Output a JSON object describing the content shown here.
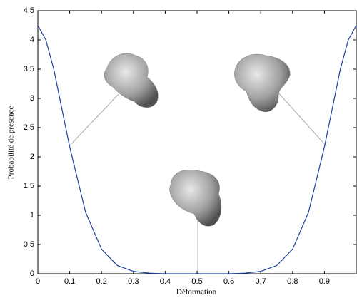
{
  "chart_data": {
    "type": "line",
    "xlabel": "Déformation",
    "ylabel": "Probabilité de presence",
    "x": [
      0,
      0.025,
      0.05,
      0.1,
      0.15,
      0.2,
      0.25,
      0.3,
      0.35,
      0.4,
      0.45,
      0.5,
      0.55,
      0.6,
      0.65,
      0.7,
      0.75,
      0.8,
      0.85,
      0.9,
      0.95,
      0.975,
      1
    ],
    "series": [
      {
        "color": "#1f3f9f",
        "values": [
          4.25,
          4.0,
          3.5,
          2.17,
          1.05,
          0.42,
          0.14,
          0.04,
          0.01,
          0,
          0,
          0,
          0,
          0,
          0.01,
          0.04,
          0.14,
          0.42,
          1.05,
          2.17,
          3.5,
          4.0,
          4.25
        ]
      }
    ],
    "xlim": [
      0,
      1
    ],
    "ylim": [
      0,
      4.5
    ],
    "xticks": [
      0,
      0.1,
      0.2,
      0.3,
      0.4,
      0.5,
      0.6,
      0.7,
      0.8,
      0.9
    ],
    "yticks": [
      0,
      0.5,
      1,
      1.5,
      2,
      2.5,
      3,
      3.5,
      4,
      4.5
    ]
  }
}
